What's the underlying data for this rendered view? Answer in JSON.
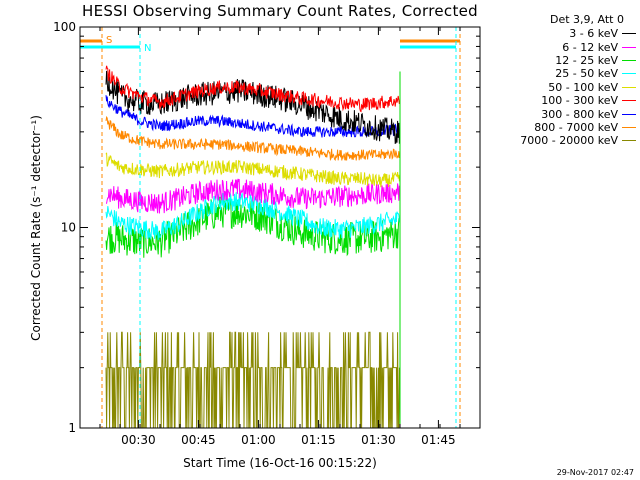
{
  "title": "HESSI Observing Summary Count Rates, Corrected",
  "footer": {
    "date": "29-Nov-2017 02:47"
  },
  "legend": {
    "header": "Det 3,9, Att 0",
    "entries": [
      {
        "label": "3 - 6 keV",
        "color": "#000000"
      },
      {
        "label": "6 - 12 keV",
        "color": "#ff00ff"
      },
      {
        "label": "12 - 25 keV",
        "color": "#00dd00"
      },
      {
        "label": "25 - 50 keV",
        "color": "#00ffff"
      },
      {
        "label": "50 - 100 keV",
        "color": "#dddd00"
      },
      {
        "label": "100 - 300 keV",
        "color": "#ff0000"
      },
      {
        "label": "300 - 800 keV",
        "color": "#0000ff"
      },
      {
        "label": "800 - 7000 keV",
        "color": "#ff8800"
      },
      {
        "label": "7000 - 20000 keV",
        "color": "#888800"
      }
    ]
  },
  "markers": {
    "saa_label": "S",
    "night_label": "N",
    "saa_color": "#ff8800",
    "night_color": "#00ffff"
  },
  "chart_data": {
    "type": "line",
    "title": "HESSI Observing Summary Count Rates, Corrected",
    "xlabel": "Start Time (16-Oct-16 00:15:22)",
    "ylabel": "Corrected Count Rate (s⁻¹ detector⁻¹)",
    "x_unit": "minutes after 00:15:22",
    "xlim": [
      0,
      100
    ],
    "ylim": [
      1,
      100
    ],
    "yscale": "log",
    "xticks": [
      14.6,
      29.6,
      44.6,
      59.6,
      74.6,
      89.6
    ],
    "xtick_labels": [
      "00:30",
      "00:45",
      "01:00",
      "01:15",
      "01:30",
      "01:45"
    ],
    "yticks": [
      1,
      10,
      100
    ],
    "ytick_labels": [
      "1",
      "10",
      "100"
    ],
    "data_range": [
      6.5,
      80.0
    ],
    "saa_intervals": [
      [
        0,
        5.5
      ],
      [
        80.0,
        95.0
      ]
    ],
    "night_intervals": [
      [
        0,
        15.0
      ],
      [
        80.0,
        94.0
      ]
    ],
    "series": [
      {
        "name": "3 - 6 keV",
        "color": "#000000",
        "x": [
          6.5,
          10,
          15,
          20,
          25,
          30,
          35,
          40,
          45,
          50,
          55,
          60,
          65,
          70,
          75,
          79.5
        ],
        "y": [
          55,
          45,
          42,
          41,
          44,
          46,
          47,
          48,
          46,
          44,
          41,
          38,
          35,
          33,
          31,
          30
        ],
        "noise": 0.09
      },
      {
        "name": "6 - 12 keV",
        "color": "#ff00ff",
        "x": [
          6.5,
          10,
          15,
          20,
          25,
          30,
          35,
          40,
          45,
          50,
          55,
          60,
          65,
          70,
          75,
          79.5
        ],
        "y": [
          15,
          14,
          13.5,
          13.2,
          14,
          15,
          15.5,
          15.5,
          15,
          14.5,
          14,
          14,
          14.3,
          14.5,
          14.8,
          15
        ],
        "noise": 0.08
      },
      {
        "name": "12 - 25 keV",
        "color": "#00dd00",
        "x": [
          6.5,
          10,
          15,
          20,
          25,
          30,
          35,
          40,
          45,
          50,
          55,
          60,
          65,
          70,
          75,
          79.5
        ],
        "y": [
          9,
          8.8,
          8.5,
          8.5,
          9.5,
          11,
          12,
          12,
          11.5,
          10.5,
          9.5,
          9,
          8.8,
          8.8,
          9,
          9.5
        ],
        "noise": 0.12
      },
      {
        "name": "25 - 50 keV",
        "color": "#00ffff",
        "x": [
          6.5,
          10,
          15,
          20,
          25,
          30,
          35,
          40,
          45,
          50,
          55,
          60,
          65,
          70,
          75,
          79.5
        ],
        "y": [
          12,
          10.5,
          10,
          9.5,
          10.5,
          12,
          13.5,
          13.5,
          13,
          12,
          11,
          10,
          9.8,
          10,
          10.5,
          11
        ],
        "noise": 0.07
      },
      {
        "name": "50 - 100 keV",
        "color": "#dddd00",
        "x": [
          6.5,
          10,
          15,
          20,
          25,
          30,
          35,
          40,
          45,
          50,
          55,
          60,
          65,
          70,
          75,
          79.5
        ],
        "y": [
          22,
          20,
          19.5,
          19,
          19.5,
          20,
          20,
          20,
          19.5,
          19,
          18.5,
          18,
          17.5,
          17.5,
          17,
          17.5
        ],
        "noise": 0.05
      },
      {
        "name": "100 - 300 keV",
        "color": "#ff0000",
        "x": [
          6.5,
          10,
          15,
          20,
          25,
          30,
          35,
          40,
          45,
          50,
          55,
          60,
          65,
          70,
          75,
          79.5
        ],
        "y": [
          60,
          50,
          45,
          42,
          45,
          48,
          50,
          50,
          48,
          46,
          44,
          43,
          42,
          41,
          42,
          43
        ],
        "noise": 0.05
      },
      {
        "name": "300 - 800 keV",
        "color": "#0000ff",
        "x": [
          6.5,
          10,
          15,
          20,
          25,
          30,
          35,
          40,
          45,
          50,
          55,
          60,
          65,
          70,
          75,
          79.5
        ],
        "y": [
          43,
          38,
          34,
          32,
          33,
          34,
          34,
          33,
          32,
          31,
          30,
          30,
          30,
          30,
          30,
          31
        ],
        "noise": 0.04
      },
      {
        "name": "800 - 7000 keV",
        "color": "#ff8800",
        "x": [
          6.5,
          10,
          15,
          20,
          25,
          30,
          35,
          40,
          45,
          50,
          55,
          60,
          65,
          70,
          75,
          79.5
        ],
        "y": [
          34,
          29,
          27,
          26,
          26,
          26,
          26,
          25.5,
          25,
          24.5,
          24,
          23.5,
          23,
          23,
          23,
          23.5
        ],
        "noise": 0.04
      },
      {
        "name": "7000 - 20000 keV",
        "color": "#888800",
        "x": [
          6.5,
          20,
          40,
          60,
          79.5
        ],
        "y": [
          1.8,
          1.8,
          1.8,
          1.8,
          1.8
        ],
        "discrete": [
          1,
          2,
          3
        ],
        "noise": 0
      }
    ]
  }
}
